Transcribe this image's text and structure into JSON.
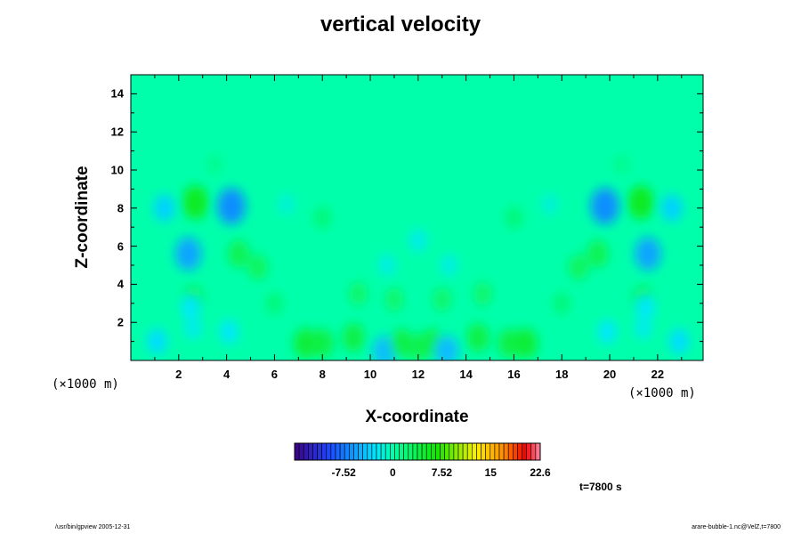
{
  "chart_data": {
    "type": "heatmap",
    "title": "vertical velocity",
    "xlabel": "X-coordinate",
    "ylabel": "Z-coordinate",
    "x_scale_note": "(×1000 m)",
    "x_ticks": [
      2,
      4,
      6,
      8,
      10,
      12,
      14,
      16,
      18,
      20,
      22
    ],
    "y_ticks": [
      2,
      4,
      6,
      8,
      10,
      12,
      14
    ],
    "xlim": [
      0,
      23.9
    ],
    "ylim": [
      0,
      15
    ],
    "background_value": 0,
    "colorbar": {
      "min": -15.04,
      "max": 22.6,
      "tick_labels": [
        "-7.52",
        "0",
        "7.52",
        "15",
        "22.6"
      ],
      "tick_values": [
        -7.52,
        0,
        7.52,
        15,
        22.6
      ]
    },
    "features": [
      {
        "x": 2.7,
        "z": 8.3,
        "value": 5.5
      },
      {
        "x": 4.2,
        "z": 8.1,
        "value": -6.5
      },
      {
        "x": 1.4,
        "z": 8.0,
        "value": -3.5
      },
      {
        "x": 2.4,
        "z": 5.6,
        "value": -5.5
      },
      {
        "x": 2.6,
        "z": 3.2,
        "value": 3.5
      },
      {
        "x": 2.5,
        "z": 2.8,
        "value": -2.5
      },
      {
        "x": 1.1,
        "z": 1.0,
        "value": -3.0
      },
      {
        "x": 2.6,
        "z": 1.7,
        "value": -2.0
      },
      {
        "x": 4.1,
        "z": 1.5,
        "value": -2.5
      },
      {
        "x": 4.5,
        "z": 5.6,
        "value": 3.5
      },
      {
        "x": 5.3,
        "z": 4.9,
        "value": 3.0
      },
      {
        "x": 7.3,
        "z": 0.9,
        "value": 4.5
      },
      {
        "x": 8.0,
        "z": 0.9,
        "value": 4.0
      },
      {
        "x": 9.3,
        "z": 1.2,
        "value": 4.0
      },
      {
        "x": 10.6,
        "z": 0.5,
        "value": -4.5
      },
      {
        "x": 11.3,
        "z": 0.9,
        "value": 4.0
      },
      {
        "x": 12.0,
        "z": 0.7,
        "value": 3.5
      },
      {
        "x": 12.6,
        "z": 0.9,
        "value": 4.0
      },
      {
        "x": 13.2,
        "z": 0.5,
        "value": -4.5
      },
      {
        "x": 14.5,
        "z": 1.2,
        "value": 4.0
      },
      {
        "x": 15.8,
        "z": 0.9,
        "value": 4.0
      },
      {
        "x": 16.5,
        "z": 0.9,
        "value": 4.5
      },
      {
        "x": 9.5,
        "z": 3.5,
        "value": 2.5
      },
      {
        "x": 12.0,
        "z": 6.3,
        "value": -2.0
      },
      {
        "x": 10.7,
        "z": 5.0,
        "value": -1.8
      },
      {
        "x": 13.3,
        "z": 5.0,
        "value": -1.8
      },
      {
        "x": 11.0,
        "z": 3.2,
        "value": 2.5
      },
      {
        "x": 8.0,
        "z": 7.5,
        "value": 2.0
      },
      {
        "x": 16.0,
        "z": 7.5,
        "value": 2.0
      },
      {
        "x": 14.7,
        "z": 3.5,
        "value": 2.5
      },
      {
        "x": 13.0,
        "z": 3.2,
        "value": 2.5
      },
      {
        "x": 6.0,
        "z": 3.0,
        "value": 2.0
      },
      {
        "x": 18.0,
        "z": 3.0,
        "value": 2.0
      },
      {
        "x": 21.3,
        "z": 8.3,
        "value": 5.5
      },
      {
        "x": 19.8,
        "z": 8.1,
        "value": -6.5
      },
      {
        "x": 22.6,
        "z": 8.0,
        "value": -3.5
      },
      {
        "x": 21.6,
        "z": 5.6,
        "value": -5.5
      },
      {
        "x": 21.4,
        "z": 3.2,
        "value": 3.5
      },
      {
        "x": 21.5,
        "z": 2.8,
        "value": -2.5
      },
      {
        "x": 22.9,
        "z": 1.0,
        "value": -3.0
      },
      {
        "x": 21.4,
        "z": 1.7,
        "value": -2.0
      },
      {
        "x": 19.9,
        "z": 1.5,
        "value": -2.5
      },
      {
        "x": 19.5,
        "z": 5.6,
        "value": 3.5
      },
      {
        "x": 18.7,
        "z": 4.9,
        "value": 3.0
      },
      {
        "x": 6.5,
        "z": 8.2,
        "value": -1.5
      },
      {
        "x": 17.5,
        "z": 8.2,
        "value": -1.5
      },
      {
        "x": 3.5,
        "z": 10.3,
        "value": 1.2
      },
      {
        "x": 20.5,
        "z": 10.3,
        "value": 1.2
      }
    ]
  },
  "time_label": "t=7800 s",
  "footer": {
    "left": "/usr/bin/gpview 2005-12-31",
    "right": "arare-bubble-1.nc@VelZ,t=7800"
  },
  "palette": {
    "violet": "#3c0082",
    "blue": "#1e46ff",
    "cyan": "#00e6ff",
    "aqua": "#00ffaa",
    "green": "#14e600",
    "yellow": "#fff000",
    "orange": "#ff8c00",
    "red": "#f00000",
    "pink": "#ff8caa"
  }
}
